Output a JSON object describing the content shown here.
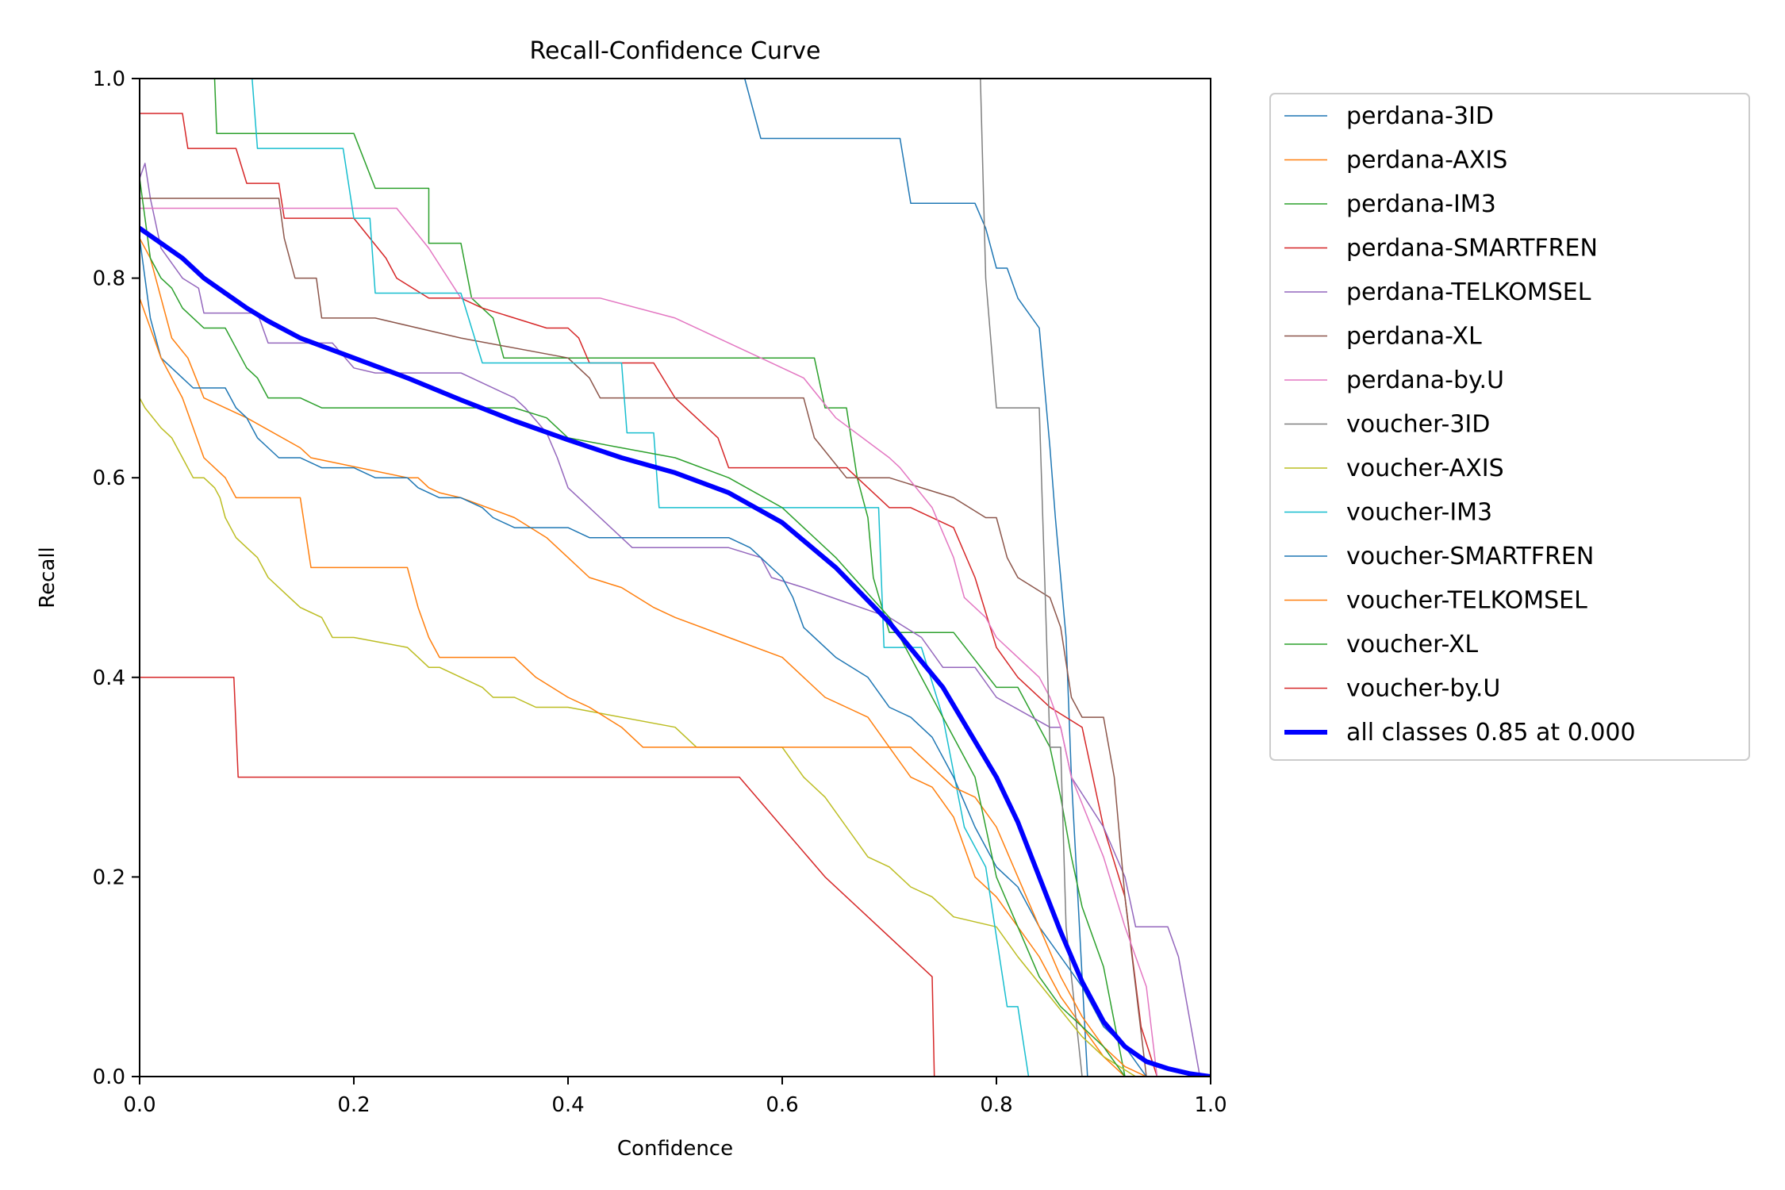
{
  "chart_data": {
    "type": "line",
    "title": "Recall-Confidence Curve",
    "xlabel": "Confidence",
    "ylabel": "Recall",
    "xlim": [
      0,
      1
    ],
    "ylim": [
      0,
      1
    ],
    "x_ticks": [
      0,
      0.2,
      0.4,
      0.6,
      0.8,
      1
    ],
    "x_tick_labels": [
      "0.0",
      "0.2",
      "0.4",
      "0.6",
      "0.8",
      "1.0"
    ],
    "y_ticks": [
      0,
      0.2,
      0.4,
      0.6,
      0.8,
      1
    ],
    "y_tick_labels": [
      "0.0",
      "0.2",
      "0.4",
      "0.6",
      "0.8",
      "1.0"
    ],
    "legend_position": "outside-right",
    "series": [
      {
        "name": "perdana-3ID",
        "label": "perdana-3ID",
        "color": "#1f77b4",
        "width": 1.5,
        "x": [
          0.565,
          0.58,
          0.6,
          0.71,
          0.72,
          0.78,
          0.79,
          0.8,
          0.81,
          0.82,
          0.84,
          0.845,
          0.85,
          0.855,
          0.86,
          0.865,
          0.87,
          0.875,
          0.88,
          0.885,
          0.9
        ],
        "y": [
          1.0,
          0.94,
          0.94,
          0.94,
          0.875,
          0.875,
          0.85,
          0.81,
          0.81,
          0.78,
          0.75,
          0.69,
          0.63,
          0.56,
          0.5,
          0.44,
          0.3,
          0.2,
          0.1,
          0.0,
          0.0
        ]
      },
      {
        "name": "perdana-AXIS",
        "label": "perdana-AXIS",
        "color": "#ff7f0e",
        "width": 1.5,
        "x": [
          0.0,
          0.01,
          0.02,
          0.03,
          0.045,
          0.06,
          0.1,
          0.15,
          0.16,
          0.25,
          0.26,
          0.27,
          0.28,
          0.3,
          0.35,
          0.38,
          0.4,
          0.42,
          0.45,
          0.48,
          0.5,
          0.55,
          0.6,
          0.62,
          0.64,
          0.66,
          0.68,
          0.7,
          0.72,
          0.74,
          0.76,
          0.78,
          0.8,
          0.82,
          0.84,
          0.86,
          0.88,
          0.9,
          0.92,
          0.94
        ],
        "y": [
          0.84,
          0.82,
          0.78,
          0.74,
          0.72,
          0.68,
          0.66,
          0.63,
          0.62,
          0.6,
          0.6,
          0.59,
          0.585,
          0.58,
          0.56,
          0.54,
          0.52,
          0.5,
          0.49,
          0.47,
          0.46,
          0.44,
          0.42,
          0.4,
          0.38,
          0.37,
          0.36,
          0.33,
          0.3,
          0.29,
          0.26,
          0.2,
          0.18,
          0.15,
          0.12,
          0.08,
          0.05,
          0.02,
          0.0,
          0.0
        ]
      },
      {
        "name": "perdana-IM3",
        "label": "perdana-IM3",
        "color": "#2ca02c",
        "width": 1.5,
        "x": [
          0.07,
          0.072,
          0.1,
          0.2,
          0.22,
          0.27,
          0.27,
          0.3,
          0.31,
          0.33,
          0.34,
          0.36,
          0.4,
          0.5,
          0.55,
          0.63,
          0.64,
          0.66,
          0.67,
          0.68,
          0.685,
          0.7,
          0.72,
          0.76,
          0.8,
          0.82,
          0.85,
          0.86,
          0.87,
          0.88,
          0.9,
          0.92
        ],
        "y": [
          1.0,
          0.945,
          0.945,
          0.945,
          0.89,
          0.89,
          0.835,
          0.835,
          0.78,
          0.76,
          0.72,
          0.72,
          0.72,
          0.72,
          0.72,
          0.72,
          0.67,
          0.67,
          0.6,
          0.56,
          0.5,
          0.445,
          0.445,
          0.445,
          0.39,
          0.39,
          0.33,
          0.28,
          0.22,
          0.17,
          0.11,
          0.0
        ]
      },
      {
        "name": "perdana-SMARTFREN",
        "label": "perdana-SMARTFREN",
        "color": "#d62728",
        "width": 1.5,
        "x": [
          0.0,
          0.04,
          0.045,
          0.09,
          0.1,
          0.13,
          0.135,
          0.2,
          0.23,
          0.24,
          0.27,
          0.3,
          0.32,
          0.38,
          0.4,
          0.41,
          0.42,
          0.48,
          0.5,
          0.52,
          0.54,
          0.55,
          0.6,
          0.62,
          0.63,
          0.66,
          0.7,
          0.72,
          0.76,
          0.78,
          0.8,
          0.82,
          0.85,
          0.88,
          0.9,
          0.92,
          0.935,
          0.95
        ],
        "y": [
          0.965,
          0.965,
          0.93,
          0.93,
          0.895,
          0.895,
          0.86,
          0.86,
          0.82,
          0.8,
          0.78,
          0.78,
          0.77,
          0.75,
          0.75,
          0.74,
          0.715,
          0.715,
          0.68,
          0.66,
          0.64,
          0.61,
          0.61,
          0.61,
          0.61,
          0.61,
          0.57,
          0.57,
          0.55,
          0.5,
          0.43,
          0.4,
          0.37,
          0.35,
          0.25,
          0.18,
          0.05,
          0.0
        ]
      },
      {
        "name": "perdana-TELKOMSEL",
        "label": "perdana-TELKOMSEL",
        "color": "#9467bd",
        "width": 1.5,
        "x": [
          0.0,
          0.005,
          0.01,
          0.02,
          0.04,
          0.055,
          0.06,
          0.11,
          0.12,
          0.18,
          0.2,
          0.22,
          0.3,
          0.35,
          0.36,
          0.38,
          0.39,
          0.4,
          0.43,
          0.46,
          0.5,
          0.55,
          0.58,
          0.59,
          0.62,
          0.66,
          0.7,
          0.73,
          0.75,
          0.78,
          0.8,
          0.85,
          0.86,
          0.87,
          0.9,
          0.92,
          0.93,
          0.96,
          0.97,
          0.98,
          0.99
        ],
        "y": [
          0.9,
          0.915,
          0.88,
          0.83,
          0.8,
          0.79,
          0.765,
          0.765,
          0.735,
          0.735,
          0.71,
          0.705,
          0.705,
          0.68,
          0.67,
          0.645,
          0.62,
          0.59,
          0.56,
          0.53,
          0.53,
          0.53,
          0.52,
          0.5,
          0.49,
          0.475,
          0.46,
          0.44,
          0.41,
          0.41,
          0.38,
          0.35,
          0.35,
          0.3,
          0.25,
          0.2,
          0.15,
          0.15,
          0.12,
          0.06,
          0.0
        ]
      },
      {
        "name": "perdana-XL",
        "label": "perdana-XL",
        "color": "#8c564b",
        "width": 1.5,
        "x": [
          0.0,
          0.13,
          0.135,
          0.145,
          0.165,
          0.17,
          0.22,
          0.3,
          0.4,
          0.42,
          0.43,
          0.6,
          0.62,
          0.63,
          0.66,
          0.7,
          0.76,
          0.79,
          0.8,
          0.81,
          0.82,
          0.85,
          0.86,
          0.87,
          0.88,
          0.9,
          0.91,
          0.92,
          0.94
        ],
        "y": [
          0.88,
          0.88,
          0.84,
          0.8,
          0.8,
          0.76,
          0.76,
          0.74,
          0.72,
          0.7,
          0.68,
          0.68,
          0.68,
          0.64,
          0.6,
          0.6,
          0.58,
          0.56,
          0.56,
          0.52,
          0.5,
          0.48,
          0.45,
          0.38,
          0.36,
          0.36,
          0.3,
          0.18,
          0.0
        ]
      },
      {
        "name": "perdana-by.U",
        "label": "perdana-by.U",
        "color": "#e377c2",
        "width": 1.5,
        "x": [
          0.0,
          0.24,
          0.27,
          0.3,
          0.31,
          0.35,
          0.4,
          0.43,
          0.5,
          0.54,
          0.58,
          0.6,
          0.62,
          0.65,
          0.7,
          0.71,
          0.74,
          0.76,
          0.77,
          0.79,
          0.8,
          0.84,
          0.85,
          0.86,
          0.87,
          0.9,
          0.92,
          0.94,
          0.95
        ],
        "y": [
          0.87,
          0.87,
          0.83,
          0.78,
          0.78,
          0.78,
          0.78,
          0.78,
          0.76,
          0.74,
          0.72,
          0.71,
          0.7,
          0.66,
          0.62,
          0.61,
          0.57,
          0.52,
          0.48,
          0.46,
          0.44,
          0.4,
          0.38,
          0.35,
          0.3,
          0.22,
          0.15,
          0.09,
          0.0
        ]
      },
      {
        "name": "voucher-3ID",
        "label": "voucher-3ID",
        "color": "#7f7f7f",
        "width": 1.5,
        "x": [
          0.785,
          0.79,
          0.8,
          0.83,
          0.84,
          0.845,
          0.85,
          0.86,
          0.865,
          0.87,
          0.875,
          0.88
        ],
        "y": [
          1.0,
          0.8,
          0.67,
          0.67,
          0.67,
          0.5,
          0.33,
          0.33,
          0.15,
          0.1,
          0.05,
          0.0
        ]
      },
      {
        "name": "voucher-AXIS",
        "label": "voucher-AXIS",
        "color": "#bcbd22",
        "width": 1.5,
        "x": [
          0.0,
          0.005,
          0.02,
          0.03,
          0.04,
          0.05,
          0.06,
          0.07,
          0.075,
          0.08,
          0.09,
          0.1,
          0.11,
          0.12,
          0.14,
          0.15,
          0.17,
          0.18,
          0.19,
          0.2,
          0.25,
          0.26,
          0.27,
          0.28,
          0.3,
          0.32,
          0.33,
          0.35,
          0.37,
          0.4,
          0.5,
          0.52,
          0.58,
          0.6,
          0.62,
          0.64,
          0.66,
          0.68,
          0.7,
          0.72,
          0.74,
          0.76,
          0.8,
          0.82,
          0.85,
          0.88,
          0.9,
          0.93
        ],
        "y": [
          0.68,
          0.67,
          0.65,
          0.64,
          0.62,
          0.6,
          0.6,
          0.59,
          0.58,
          0.56,
          0.54,
          0.53,
          0.52,
          0.5,
          0.48,
          0.47,
          0.46,
          0.44,
          0.44,
          0.44,
          0.43,
          0.42,
          0.41,
          0.41,
          0.4,
          0.39,
          0.38,
          0.38,
          0.37,
          0.37,
          0.35,
          0.33,
          0.33,
          0.33,
          0.3,
          0.28,
          0.25,
          0.22,
          0.21,
          0.19,
          0.18,
          0.16,
          0.15,
          0.12,
          0.08,
          0.04,
          0.02,
          0.0
        ]
      },
      {
        "name": "voucher-IM3",
        "label": "voucher-IM3",
        "color": "#17becf",
        "width": 1.5,
        "x": [
          0.105,
          0.11,
          0.19,
          0.2,
          0.215,
          0.22,
          0.3,
          0.32,
          0.45,
          0.455,
          0.48,
          0.485,
          0.62,
          0.69,
          0.695,
          0.73,
          0.75,
          0.77,
          0.79,
          0.8,
          0.81,
          0.82,
          0.83
        ],
        "y": [
          1.0,
          0.93,
          0.93,
          0.86,
          0.86,
          0.785,
          0.785,
          0.715,
          0.715,
          0.645,
          0.645,
          0.57,
          0.57,
          0.57,
          0.43,
          0.43,
          0.36,
          0.25,
          0.21,
          0.14,
          0.07,
          0.07,
          0.0
        ]
      },
      {
        "name": "voucher-SMARTFREN",
        "label": "voucher-SMARTFREN",
        "color": "#1f77b4",
        "width": 1.5,
        "x": [
          0.0,
          0.01,
          0.02,
          0.04,
          0.05,
          0.06,
          0.08,
          0.09,
          0.1,
          0.11,
          0.12,
          0.13,
          0.15,
          0.17,
          0.2,
          0.22,
          0.25,
          0.26,
          0.28,
          0.3,
          0.32,
          0.33,
          0.35,
          0.4,
          0.42,
          0.45,
          0.5,
          0.55,
          0.57,
          0.58,
          0.6,
          0.61,
          0.62,
          0.65,
          0.68,
          0.7,
          0.72,
          0.74,
          0.76,
          0.78,
          0.8,
          0.82,
          0.84,
          0.86,
          0.88,
          0.9,
          0.92,
          0.94
        ],
        "y": [
          0.84,
          0.76,
          0.72,
          0.7,
          0.69,
          0.69,
          0.69,
          0.67,
          0.66,
          0.64,
          0.63,
          0.62,
          0.62,
          0.61,
          0.61,
          0.6,
          0.6,
          0.59,
          0.58,
          0.58,
          0.57,
          0.56,
          0.55,
          0.55,
          0.54,
          0.54,
          0.54,
          0.54,
          0.53,
          0.52,
          0.5,
          0.48,
          0.45,
          0.42,
          0.4,
          0.37,
          0.36,
          0.34,
          0.3,
          0.25,
          0.21,
          0.19,
          0.15,
          0.12,
          0.09,
          0.05,
          0.03,
          0.0
        ]
      },
      {
        "name": "voucher-TELKOMSEL",
        "label": "voucher-TELKOMSEL",
        "color": "#ff7f0e",
        "width": 1.5,
        "x": [
          0.0,
          0.01,
          0.02,
          0.03,
          0.04,
          0.05,
          0.06,
          0.08,
          0.09,
          0.15,
          0.16,
          0.25,
          0.26,
          0.27,
          0.28,
          0.3,
          0.31,
          0.35,
          0.37,
          0.4,
          0.42,
          0.45,
          0.46,
          0.47,
          0.5,
          0.6,
          0.65,
          0.7,
          0.72,
          0.76,
          0.78,
          0.8,
          0.82,
          0.84,
          0.86,
          0.88,
          0.9,
          0.92,
          0.94
        ],
        "y": [
          0.78,
          0.75,
          0.72,
          0.7,
          0.68,
          0.65,
          0.62,
          0.6,
          0.58,
          0.58,
          0.51,
          0.51,
          0.47,
          0.44,
          0.42,
          0.42,
          0.42,
          0.42,
          0.4,
          0.38,
          0.37,
          0.35,
          0.34,
          0.33,
          0.33,
          0.33,
          0.33,
          0.33,
          0.33,
          0.29,
          0.28,
          0.25,
          0.2,
          0.15,
          0.1,
          0.06,
          0.03,
          0.01,
          0.0
        ]
      },
      {
        "name": "voucher-XL",
        "label": "voucher-XL",
        "color": "#2ca02c",
        "width": 1.5,
        "x": [
          0.0,
          0.005,
          0.01,
          0.02,
          0.03,
          0.04,
          0.05,
          0.06,
          0.07,
          0.08,
          0.09,
          0.1,
          0.11,
          0.12,
          0.15,
          0.17,
          0.2,
          0.3,
          0.35,
          0.38,
          0.4,
          0.45,
          0.5,
          0.55,
          0.6,
          0.65,
          0.7,
          0.72,
          0.75,
          0.78,
          0.8,
          0.82,
          0.84,
          0.86,
          0.88,
          0.9,
          0.92
        ],
        "y": [
          0.9,
          0.86,
          0.82,
          0.8,
          0.79,
          0.77,
          0.76,
          0.75,
          0.75,
          0.75,
          0.73,
          0.71,
          0.7,
          0.68,
          0.68,
          0.67,
          0.67,
          0.67,
          0.67,
          0.66,
          0.64,
          0.63,
          0.62,
          0.6,
          0.57,
          0.52,
          0.46,
          0.42,
          0.36,
          0.3,
          0.2,
          0.15,
          0.1,
          0.07,
          0.05,
          0.03,
          0.0
        ]
      },
      {
        "name": "voucher-by.U",
        "label": "voucher-by.U",
        "color": "#d62728",
        "width": 1.5,
        "x": [
          0.0,
          0.088,
          0.092,
          0.1,
          0.3,
          0.56,
          0.64,
          0.74,
          0.742,
          0.8,
          0.93
        ],
        "y": [
          0.4,
          0.4,
          0.3,
          0.3,
          0.3,
          0.3,
          0.2,
          0.1,
          0.0,
          0.0,
          0.0
        ]
      },
      {
        "name": "all classes",
        "label": "all classes 0.85 at 0.000",
        "color": "#0000ff",
        "width": 6,
        "x": [
          0.0,
          0.02,
          0.04,
          0.06,
          0.08,
          0.1,
          0.12,
          0.15,
          0.2,
          0.25,
          0.3,
          0.35,
          0.4,
          0.45,
          0.5,
          0.55,
          0.6,
          0.65,
          0.7,
          0.75,
          0.8,
          0.82,
          0.84,
          0.86,
          0.88,
          0.9,
          0.92,
          0.94,
          0.96,
          0.98,
          1.0
        ],
        "y": [
          0.85,
          0.835,
          0.82,
          0.8,
          0.785,
          0.77,
          0.757,
          0.74,
          0.72,
          0.7,
          0.678,
          0.657,
          0.638,
          0.62,
          0.605,
          0.585,
          0.555,
          0.51,
          0.455,
          0.39,
          0.3,
          0.255,
          0.2,
          0.145,
          0.095,
          0.055,
          0.03,
          0.015,
          0.008,
          0.003,
          0.0
        ]
      }
    ]
  }
}
